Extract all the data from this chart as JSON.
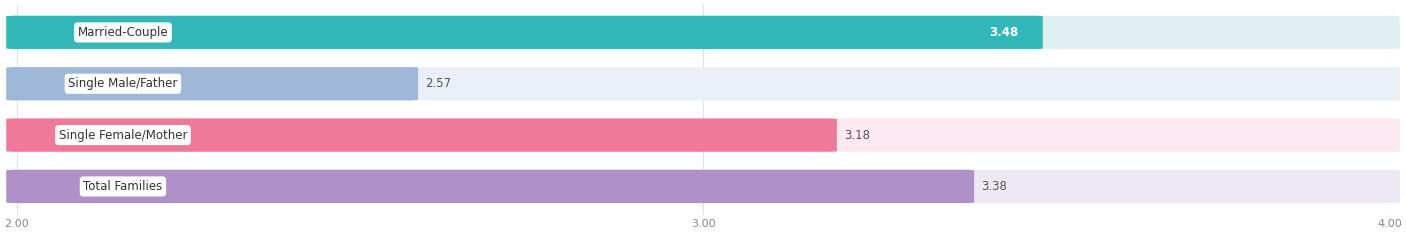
{
  "categories": [
    "Married-Couple",
    "Single Male/Father",
    "Single Female/Mother",
    "Total Families"
  ],
  "values": [
    3.48,
    2.57,
    3.18,
    3.38
  ],
  "bar_colors": [
    "#32b8b8",
    "#a0b8d8",
    "#f07898",
    "#b090c8"
  ],
  "bar_bg_colors": [
    "#e0f0f0",
    "#eaeff8",
    "#fce8f0",
    "#ede8f4"
  ],
  "xlim": [
    2.0,
    4.0
  ],
  "xticks": [
    2.0,
    3.0,
    4.0
  ],
  "bar_height": 0.62,
  "figsize": [
    14.06,
    2.33
  ],
  "dpi": 100,
  "title_fontsize": 11.5,
  "label_fontsize": 8.5,
  "value_fontsize": 8.5,
  "tick_fontsize": 8,
  "source_fontsize": 7.5,
  "bg_color": "#ffffff"
}
